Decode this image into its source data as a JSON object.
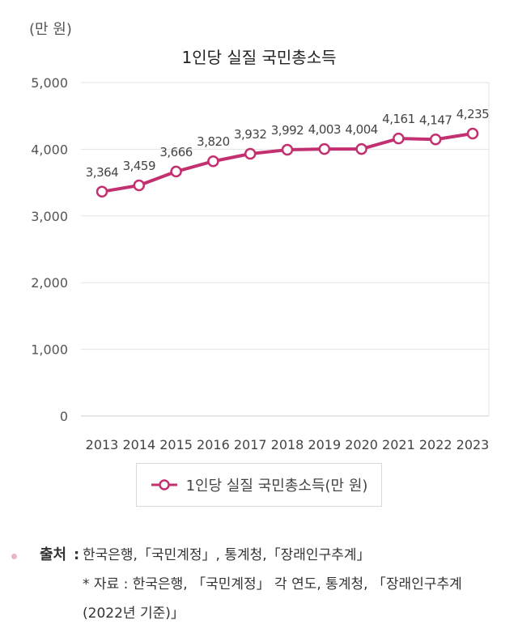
{
  "unit_label": "(만 원)",
  "chart_data": {
    "type": "line",
    "title": "1인당 실질 국민총소득",
    "categories": [
      "2013",
      "2014",
      "2015",
      "2016",
      "2017",
      "2018",
      "2019",
      "2020",
      "2021",
      "2022",
      "2023"
    ],
    "series": [
      {
        "name": "1인당 실질 국민총소득(만 원)",
        "values": [
          3364,
          3459,
          3666,
          3820,
          3932,
          3992,
          4003,
          4004,
          4161,
          4147,
          4235
        ],
        "labels": [
          "3,364",
          "3,459",
          "3,666",
          "3,820",
          "3,932",
          "3,992",
          "4,003",
          "4,004",
          "4,161",
          "4,147",
          "4,235"
        ],
        "color": "#c2306f"
      }
    ],
    "ylim": [
      0,
      5000
    ],
    "yticks": [
      0,
      1000,
      2000,
      3000,
      4000,
      5000
    ],
    "ytick_labels": [
      "0",
      "1,000",
      "2,000",
      "3,000",
      "4,000",
      "5,000"
    ],
    "grid": true,
    "legend_position": "bottom"
  },
  "legend_label": "1인당 실질 국민총소득(만 원)",
  "source": {
    "label": "출처",
    "colon": ":",
    "main": "한국은행,「국민계정」, 통계청,「장래인구추계」",
    "note": "* 자료 : 한국은행, 「국민계정」 각 연도, 통계청, 「장래인구추계(2022년 기준)」"
  },
  "colors": {
    "line": "#c2306f",
    "grid": "#e3e3e3",
    "marker_fill": "#ffffff",
    "bullet": "#e8b6cb"
  }
}
